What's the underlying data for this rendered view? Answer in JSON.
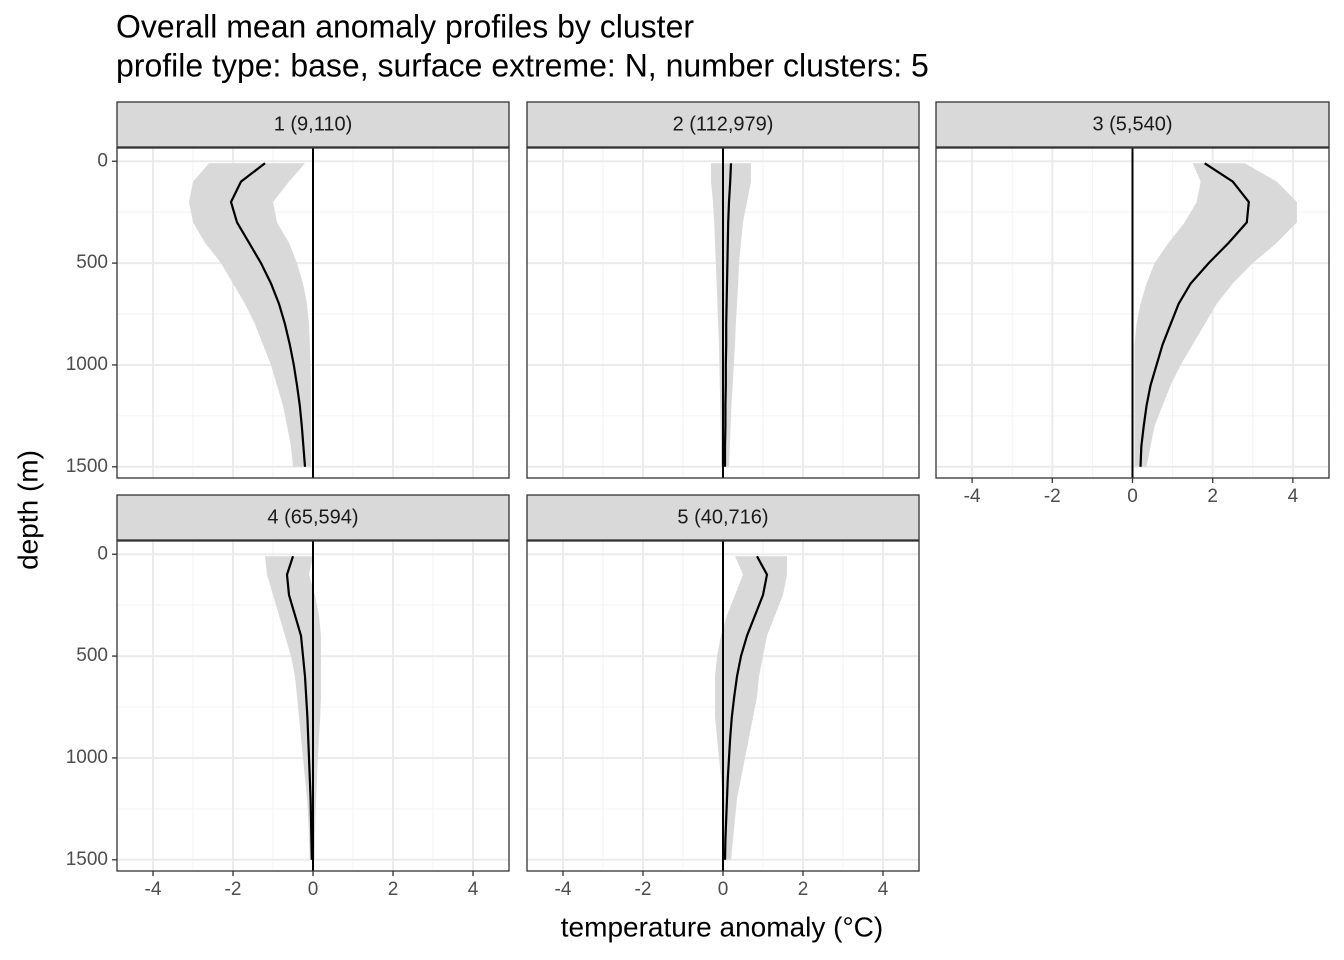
{
  "title": "Overall mean anomaly profiles by cluster",
  "subtitle": "profile type: base, surface extreme: N, number clusters: 5",
  "x_label": "temperature anomaly (°C)",
  "y_label": "depth (m)",
  "line_color": "#000000",
  "band_color": "#d9d9d9",
  "vline_color": "#000000",
  "chart_data": [
    {
      "type": "line",
      "title": "1 (9,110)",
      "vline": 0,
      "depth": [
        10,
        100,
        200,
        300,
        400,
        500,
        600,
        700,
        800,
        900,
        1000,
        1100,
        1200,
        1300,
        1400,
        1500
      ],
      "mean": [
        -1.2,
        -1.8,
        -2.05,
        -1.9,
        -1.6,
        -1.3,
        -1.05,
        -0.85,
        -0.7,
        -0.58,
        -0.48,
        -0.4,
        -0.33,
        -0.28,
        -0.24,
        -0.2
      ],
      "lower": [
        -2.6,
        -3.0,
        -3.1,
        -3.0,
        -2.7,
        -2.3,
        -2.0,
        -1.7,
        -1.45,
        -1.25,
        -1.05,
        -0.9,
        -0.75,
        -0.65,
        -0.55,
        -0.5
      ],
      "upper": [
        -0.2,
        -0.6,
        -1.0,
        -0.9,
        -0.6,
        -0.4,
        -0.25,
        -0.15,
        -0.1,
        -0.08,
        -0.06,
        -0.05,
        -0.05,
        -0.05,
        -0.05,
        -0.05
      ],
      "xlim": [
        -4.9,
        4.9
      ],
      "xticks": [
        -4,
        -2,
        0,
        2,
        4
      ],
      "ylim": [
        1555,
        -65
      ],
      "yticks": [
        0,
        500,
        1000,
        1500
      ],
      "grid": true
    },
    {
      "type": "line",
      "title": "2 (112,979)",
      "vline": 0,
      "depth": [
        10,
        100,
        200,
        300,
        400,
        500,
        600,
        700,
        800,
        900,
        1000,
        1100,
        1200,
        1300,
        1400,
        1500
      ],
      "mean": [
        0.2,
        0.18,
        0.15,
        0.13,
        0.12,
        0.11,
        0.1,
        0.09,
        0.08,
        0.08,
        0.07,
        0.07,
        0.06,
        0.06,
        0.05,
        0.05
      ],
      "lower": [
        -0.3,
        -0.3,
        -0.25,
        -0.22,
        -0.2,
        -0.18,
        -0.16,
        -0.14,
        -0.12,
        -0.1,
        -0.09,
        -0.08,
        -0.07,
        -0.06,
        -0.05,
        -0.05
      ],
      "upper": [
        0.7,
        0.7,
        0.6,
        0.5,
        0.45,
        0.4,
        0.38,
        0.35,
        0.32,
        0.3,
        0.27,
        0.24,
        0.21,
        0.19,
        0.17,
        0.15
      ],
      "xlim": [
        -4.9,
        4.9
      ],
      "xticks": [
        -4,
        -2,
        0,
        2,
        4
      ],
      "ylim": [
        1555,
        -65
      ],
      "yticks": [
        0,
        500,
        1000,
        1500
      ],
      "grid": true
    },
    {
      "type": "line",
      "title": "3 (5,540)",
      "vline": 0,
      "depth": [
        10,
        100,
        200,
        300,
        400,
        500,
        600,
        700,
        800,
        900,
        1000,
        1100,
        1200,
        1300,
        1400,
        1500
      ],
      "mean": [
        1.8,
        2.5,
        2.9,
        2.85,
        2.4,
        1.9,
        1.45,
        1.15,
        0.95,
        0.75,
        0.6,
        0.45,
        0.35,
        0.28,
        0.22,
        0.2
      ],
      "lower": [
        1.5,
        1.7,
        1.6,
        1.3,
        0.9,
        0.55,
        0.35,
        0.2,
        0.1,
        0.05,
        0.05,
        0.05,
        0.05,
        0.05,
        0.05,
        0.05
      ],
      "upper": [
        2.8,
        3.6,
        4.1,
        4.1,
        3.6,
        3.0,
        2.5,
        2.1,
        1.8,
        1.5,
        1.2,
        0.95,
        0.75,
        0.55,
        0.45,
        0.35
      ],
      "xlim": [
        -4.9,
        4.9
      ],
      "xticks": [
        -4,
        -2,
        0,
        2,
        4
      ],
      "ylim": [
        1555,
        -65
      ],
      "yticks": [
        0,
        500,
        1000,
        1500
      ],
      "grid": true
    },
    {
      "type": "line",
      "title": "4 (65,594)",
      "vline": 0,
      "depth": [
        10,
        100,
        200,
        300,
        400,
        500,
        600,
        700,
        800,
        900,
        1000,
        1100,
        1200,
        1300,
        1400,
        1500
      ],
      "mean": [
        -0.5,
        -0.65,
        -0.6,
        -0.45,
        -0.3,
        -0.25,
        -0.2,
        -0.17,
        -0.14,
        -0.12,
        -0.1,
        -0.08,
        -0.06,
        -0.05,
        -0.04,
        -0.03
      ],
      "lower": [
        -1.2,
        -1.15,
        -1.0,
        -0.85,
        -0.7,
        -0.55,
        -0.45,
        -0.4,
        -0.35,
        -0.3,
        -0.25,
        -0.2,
        -0.15,
        -0.12,
        -0.1,
        -0.08
      ],
      "upper": [
        0,
        -0.1,
        0.05,
        0.15,
        0.2,
        0.2,
        0.2,
        0.2,
        0.18,
        0.15,
        0.12,
        0.1,
        0.08,
        0.06,
        0.05,
        0.04
      ],
      "xlim": [
        -4.9,
        4.9
      ],
      "xticks": [
        -4,
        -2,
        0,
        2,
        4
      ],
      "ylim": [
        1555,
        -65
      ],
      "yticks": [
        0,
        500,
        1000,
        1500
      ],
      "grid": true
    },
    {
      "type": "line",
      "title": "5 (40,716)",
      "vline": 0,
      "depth": [
        10,
        100,
        200,
        300,
        400,
        500,
        600,
        700,
        800,
        900,
        1000,
        1100,
        1200,
        1300,
        1400,
        1500
      ],
      "mean": [
        0.85,
        1.1,
        1.0,
        0.8,
        0.6,
        0.45,
        0.35,
        0.28,
        0.22,
        0.18,
        0.15,
        0.12,
        0.1,
        0.08,
        0.06,
        0.05
      ],
      "lower": [
        0.3,
        0.5,
        0.3,
        0.1,
        -0.05,
        -0.15,
        -0.2,
        -0.2,
        -0.2,
        -0.15,
        -0.1,
        -0.05,
        0,
        0,
        0,
        0
      ],
      "upper": [
        1.6,
        1.6,
        1.5,
        1.3,
        1.1,
        1.0,
        0.9,
        0.85,
        0.75,
        0.65,
        0.55,
        0.45,
        0.35,
        0.3,
        0.25,
        0.2
      ],
      "xlim": [
        -4.9,
        4.9
      ],
      "xticks": [
        -4,
        -2,
        0,
        2,
        4
      ],
      "ylim": [
        1555,
        -65
      ],
      "yticks": [
        0,
        500,
        1000,
        1500
      ],
      "grid": true
    }
  ]
}
